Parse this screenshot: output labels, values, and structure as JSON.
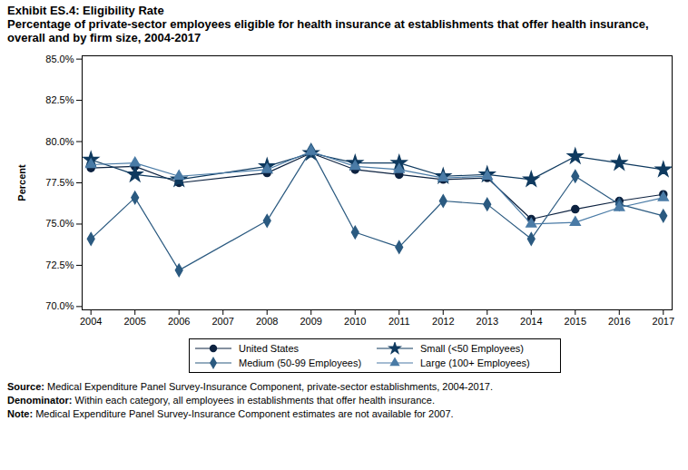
{
  "chart_data": {
    "type": "line",
    "title": "Exhibit ES.4: Eligibility Rate",
    "subtitle": "Percentage of private-sector employees eligible for health insurance at establishments that offer health insurance, overall and by firm size, 2004-2017",
    "y_label": "Percent",
    "x": [
      2004,
      2005,
      2006,
      2008,
      2009,
      2010,
      2011,
      2012,
      2013,
      2014,
      2015,
      2016,
      2017
    ],
    "series": [
      {
        "name": "United States",
        "color": "#0d2240",
        "marker": "circle",
        "values": [
          78.4,
          78.5,
          77.5,
          78.1,
          79.3,
          78.3,
          78.0,
          77.7,
          77.8,
          75.3,
          75.9,
          76.4,
          76.8
        ]
      },
      {
        "name": "Small (<50 Employees)",
        "color": "#0f3a5f",
        "marker": "star",
        "values": [
          78.9,
          78.0,
          77.7,
          78.5,
          79.3,
          78.7,
          78.7,
          77.9,
          78.0,
          77.7,
          79.1,
          78.7,
          78.3
        ]
      },
      {
        "name": "Medium (50-99 Employees)",
        "color": "#2b5a80",
        "marker": "diamond",
        "values": [
          74.1,
          76.6,
          72.2,
          75.2,
          79.5,
          74.5,
          73.6,
          76.4,
          76.2,
          74.1,
          77.9,
          76.2,
          75.5
        ]
      },
      {
        "name": "Large (100+ Employees)",
        "color": "#4a7ba6",
        "marker": "triangle",
        "values": [
          78.6,
          78.7,
          77.9,
          78.3,
          79.4,
          78.5,
          78.3,
          77.8,
          77.9,
          75.0,
          75.1,
          76.0,
          76.6
        ]
      }
    ],
    "xlim": [
      2003.8,
      2017.2
    ],
    "xticks": [
      2004,
      2005,
      2006,
      2007,
      2008,
      2009,
      2010,
      2011,
      2012,
      2013,
      2014,
      2015,
      2016,
      2017
    ],
    "ylim": [
      69.8,
      85.2
    ],
    "yticks": [
      {
        "value": 70,
        "label": "70.0%"
      },
      {
        "value": 72.5,
        "label": "72.5%"
      },
      {
        "value": 75,
        "label": "75.0%"
      },
      {
        "value": 77.5,
        "label": "77.5%"
      },
      {
        "value": 80,
        "label": "80.0%"
      },
      {
        "value": 82.5,
        "label": "82.5%"
      },
      {
        "value": 85,
        "label": "85.0%"
      }
    ],
    "grid": false,
    "legend": "bottom",
    "notes": [
      {
        "label": "Source:",
        "text": "Medical Expenditure Panel Survey-Insurance Component, private-sector establishments, 2004-2017."
      },
      {
        "label": "Denominator:",
        "text": "Within each category, all employees in establishments that offer health insurance."
      },
      {
        "label": "Note:",
        "text": "Medical Expenditure Panel Survey-Insurance Component estimates are not available for 2007."
      }
    ]
  }
}
